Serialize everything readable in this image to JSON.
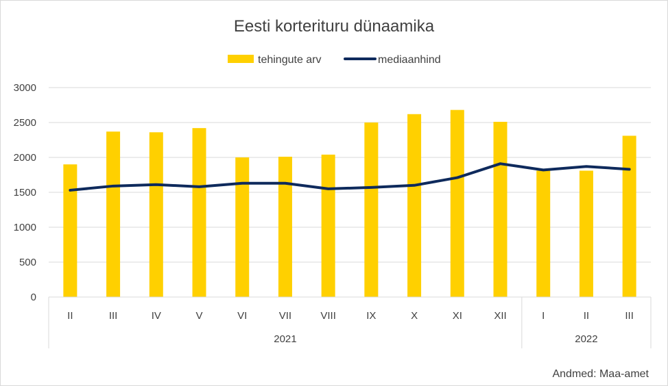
{
  "chart_data": {
    "type": "bar",
    "title": "Eesti korterituru dünaamika",
    "legend_placement": "top-center",
    "grid": true,
    "categories": [
      "II",
      "III",
      "IV",
      "V",
      "VI",
      "VII",
      "VIII",
      "IX",
      "X",
      "XI",
      "XII",
      "I",
      "II",
      "III"
    ],
    "groups": [
      {
        "label": "2021",
        "count": 11
      },
      {
        "label": "2022",
        "count": 3
      }
    ],
    "ylim": [
      0,
      3000
    ],
    "yticks": [
      0,
      500,
      1000,
      1500,
      2000,
      2500,
      3000
    ],
    "series": [
      {
        "name": "tehingute arv",
        "type": "bar",
        "color": "#FFD000",
        "values": [
          1900,
          2370,
          2360,
          2420,
          2000,
          2010,
          2040,
          2500,
          2620,
          2680,
          2510,
          1810,
          1810,
          2310
        ]
      },
      {
        "name": "mediaanhind",
        "type": "line",
        "color": "#0E2A5C",
        "values": [
          1530,
          1590,
          1610,
          1580,
          1630,
          1630,
          1550,
          1570,
          1600,
          1710,
          1910,
          1820,
          1870,
          1830
        ]
      }
    ],
    "source": "Andmed: Maa-amet"
  }
}
